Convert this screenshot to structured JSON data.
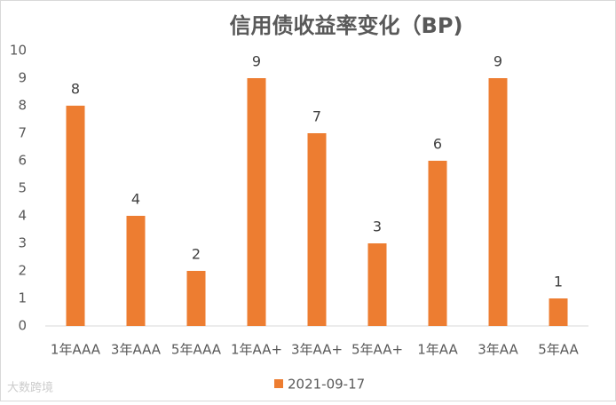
{
  "chart_data": {
    "type": "bar",
    "title": "信用债收益率变化（BP)",
    "categories": [
      "1年AAA",
      "3年AAA",
      "5年AAA",
      "1年AA+",
      "3年AA+",
      "5年AA+",
      "1年AA",
      "3年AA",
      "5年AA"
    ],
    "series": [
      {
        "name": "2021-09-17",
        "color": "#ED7D31",
        "values": [
          8,
          4,
          2,
          9,
          7,
          3,
          6,
          9,
          1
        ]
      }
    ],
    "ylim": [
      0,
      10
    ],
    "yticks": [
      0,
      1,
      2,
      3,
      4,
      5,
      6,
      7,
      8,
      9,
      10
    ],
    "grid": false,
    "legend": "bottom",
    "watermark": "大数跨境"
  }
}
